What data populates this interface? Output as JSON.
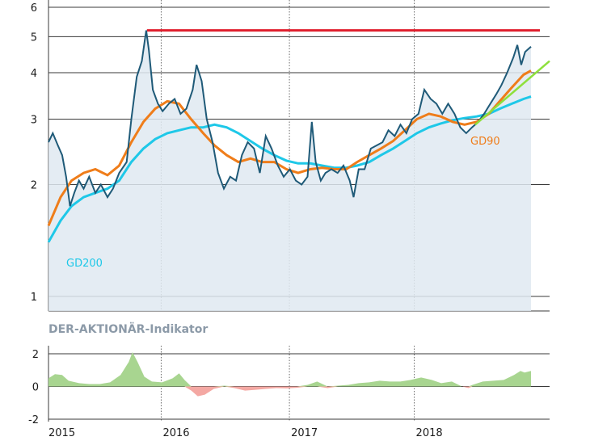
{
  "chart_data": [
    {
      "type": "line",
      "title": "",
      "xlabel": "",
      "ylabel": "",
      "scale": "log",
      "ylim": [
        1,
        6
      ],
      "yticks": [
        1,
        2,
        3,
        4,
        5,
        6
      ],
      "x_years": [
        "2015",
        "2016",
        "2017",
        "2018"
      ],
      "grid": true,
      "annotations": [
        {
          "label": "GD200",
          "color": "#1ec8e8"
        },
        {
          "label": "GD90",
          "color": "#ef7d1a"
        }
      ],
      "resistance_level": 5.2,
      "resistance_color": "#e0202e",
      "trendline": {
        "from": [
          "2018-07",
          2.9
        ],
        "to": [
          "2018-12",
          4.3
        ],
        "color": "#8ee03c"
      },
      "series": [
        {
          "role": "price",
          "color": "#1f5a78",
          "points": [
            [
              "2015-01-01",
              2.6
            ],
            [
              "2015-01-12",
              2.75
            ],
            [
              "2015-01-25",
              2.55
            ],
            [
              "2015-02-05",
              2.4
            ],
            [
              "2015-02-15",
              2.1
            ],
            [
              "2015-02-25",
              1.75
            ],
            [
              "2015-03-08",
              1.9
            ],
            [
              "2015-03-20",
              2.05
            ],
            [
              "2015-04-01",
              1.95
            ],
            [
              "2015-04-15",
              2.1
            ],
            [
              "2015-05-01",
              1.9
            ],
            [
              "2015-05-15",
              2.0
            ],
            [
              "2015-06-01",
              1.85
            ],
            [
              "2015-06-15",
              1.95
            ],
            [
              "2015-07-01",
              2.15
            ],
            [
              "2015-07-20",
              2.3
            ],
            [
              "2015-08-01",
              3.0
            ],
            [
              "2015-08-15",
              3.9
            ],
            [
              "2015-08-28",
              4.3
            ],
            [
              "2015-09-08",
              5.2
            ],
            [
              "2015-09-15",
              4.6
            ],
            [
              "2015-09-25",
              3.6
            ],
            [
              "2015-10-08",
              3.3
            ],
            [
              "2015-10-20",
              3.15
            ],
            [
              "2015-11-05",
              3.3
            ],
            [
              "2015-11-20",
              3.4
            ],
            [
              "2015-12-05",
              3.1
            ],
            [
              "2015-12-20",
              3.2
            ],
            [
              "2016-01-05",
              3.6
            ],
            [
              "2016-01-15",
              4.2
            ],
            [
              "2016-01-28",
              3.8
            ],
            [
              "2016-02-10",
              3.0
            ],
            [
              "2016-02-25",
              2.6
            ],
            [
              "2016-03-10",
              2.15
            ],
            [
              "2016-03-25",
              1.95
            ],
            [
              "2016-04-10",
              2.1
            ],
            [
              "2016-04-25",
              2.05
            ],
            [
              "2016-05-10",
              2.4
            ],
            [
              "2016-05-25",
              2.6
            ],
            [
              "2016-06-10",
              2.5
            ],
            [
              "2016-06-25",
              2.15
            ],
            [
              "2016-07-10",
              2.7
            ],
            [
              "2016-07-25",
              2.5
            ],
            [
              "2016-08-10",
              2.25
            ],
            [
              "2016-08-25",
              2.1
            ],
            [
              "2016-09-10",
              2.2
            ],
            [
              "2016-09-25",
              2.05
            ],
            [
              "2016-10-10",
              2.0
            ],
            [
              "2016-10-25",
              2.1
            ],
            [
              "2016-11-05",
              2.95
            ],
            [
              "2016-11-15",
              2.3
            ],
            [
              "2016-11-28",
              2.05
            ],
            [
              "2016-12-10",
              2.15
            ],
            [
              "2016-12-25",
              2.2
            ],
            [
              "2017-01-10",
              2.15
            ],
            [
              "2017-01-25",
              2.25
            ],
            [
              "2017-02-10",
              2.05
            ],
            [
              "2017-02-20",
              1.85
            ],
            [
              "2017-03-05",
              2.2
            ],
            [
              "2017-03-20",
              2.2
            ],
            [
              "2017-04-05",
              2.5
            ],
            [
              "2017-04-20",
              2.55
            ],
            [
              "2017-05-05",
              2.6
            ],
            [
              "2017-05-20",
              2.8
            ],
            [
              "2017-06-05",
              2.7
            ],
            [
              "2017-06-20",
              2.9
            ],
            [
              "2017-07-05",
              2.75
            ],
            [
              "2017-07-20",
              3.0
            ],
            [
              "2017-08-05",
              3.1
            ],
            [
              "2017-08-20",
              3.6
            ],
            [
              "2017-09-05",
              3.4
            ],
            [
              "2017-09-20",
              3.3
            ],
            [
              "2017-10-05",
              3.1
            ],
            [
              "2017-10-20",
              3.3
            ],
            [
              "2017-11-05",
              3.1
            ],
            [
              "2017-11-20",
              2.85
            ],
            [
              "2017-12-05",
              2.75
            ],
            [
              "2017-12-20",
              2.85
            ],
            [
              "2018-01-05",
              2.95
            ],
            [
              "2018-01-20",
              3.1
            ],
            [
              "2018-02-05",
              3.3
            ],
            [
              "2018-02-20",
              3.5
            ],
            [
              "2018-03-05",
              3.7
            ],
            [
              "2018-03-20",
              4.0
            ],
            [
              "2018-04-05",
              4.4
            ],
            [
              "2018-04-15",
              4.75
            ],
            [
              "2018-04-25",
              4.2
            ],
            [
              "2018-05-05",
              4.55
            ],
            [
              "2018-05-20",
              4.7
            ]
          ]
        },
        {
          "role": "gd90",
          "name": "GD90",
          "color": "#ef7d1a",
          "points": [
            [
              "2015-01-01",
              1.55
            ],
            [
              "2015-02-01",
              1.85
            ],
            [
              "2015-03-01",
              2.05
            ],
            [
              "2015-04-01",
              2.15
            ],
            [
              "2015-05-01",
              2.2
            ],
            [
              "2015-06-01",
              2.12
            ],
            [
              "2015-07-01",
              2.25
            ],
            [
              "2015-08-01",
              2.6
            ],
            [
              "2015-09-01",
              2.95
            ],
            [
              "2015-10-01",
              3.2
            ],
            [
              "2015-11-01",
              3.35
            ],
            [
              "2015-12-01",
              3.3
            ],
            [
              "2016-01-01",
              3.0
            ],
            [
              "2016-02-01",
              2.75
            ],
            [
              "2016-03-01",
              2.55
            ],
            [
              "2016-04-01",
              2.4
            ],
            [
              "2016-05-01",
              2.3
            ],
            [
              "2016-06-01",
              2.35
            ],
            [
              "2016-07-01",
              2.3
            ],
            [
              "2016-08-01",
              2.3
            ],
            [
              "2016-09-01",
              2.2
            ],
            [
              "2016-10-01",
              2.15
            ],
            [
              "2016-11-01",
              2.2
            ],
            [
              "2016-12-01",
              2.22
            ],
            [
              "2017-01-01",
              2.2
            ],
            [
              "2017-02-01",
              2.2
            ],
            [
              "2017-03-01",
              2.3
            ],
            [
              "2017-04-01",
              2.4
            ],
            [
              "2017-05-01",
              2.5
            ],
            [
              "2017-06-01",
              2.62
            ],
            [
              "2017-07-01",
              2.8
            ],
            [
              "2017-08-01",
              3.0
            ],
            [
              "2017-09-01",
              3.1
            ],
            [
              "2017-10-01",
              3.05
            ],
            [
              "2017-11-01",
              2.95
            ],
            [
              "2017-12-01",
              2.9
            ],
            [
              "2018-01-01",
              2.95
            ],
            [
              "2018-02-01",
              3.1
            ],
            [
              "2018-03-01",
              3.35
            ],
            [
              "2018-04-01",
              3.65
            ],
            [
              "2018-05-01",
              3.95
            ],
            [
              "2018-05-20",
              4.05
            ]
          ]
        },
        {
          "role": "gd200",
          "name": "GD200",
          "color": "#1ec8e8",
          "points": [
            [
              "2015-01-01",
              1.4
            ],
            [
              "2015-02-01",
              1.6
            ],
            [
              "2015-03-01",
              1.75
            ],
            [
              "2015-04-01",
              1.85
            ],
            [
              "2015-05-01",
              1.9
            ],
            [
              "2015-06-01",
              1.95
            ],
            [
              "2015-07-01",
              2.05
            ],
            [
              "2015-08-01",
              2.3
            ],
            [
              "2015-09-01",
              2.5
            ],
            [
              "2015-10-01",
              2.65
            ],
            [
              "2015-11-01",
              2.75
            ],
            [
              "2015-12-01",
              2.8
            ],
            [
              "2016-01-01",
              2.85
            ],
            [
              "2016-02-01",
              2.85
            ],
            [
              "2016-03-01",
              2.9
            ],
            [
              "2016-04-01",
              2.85
            ],
            [
              "2016-05-01",
              2.75
            ],
            [
              "2016-06-01",
              2.62
            ],
            [
              "2016-07-01",
              2.5
            ],
            [
              "2016-08-01",
              2.4
            ],
            [
              "2016-09-01",
              2.32
            ],
            [
              "2016-10-01",
              2.28
            ],
            [
              "2016-11-01",
              2.28
            ],
            [
              "2016-12-01",
              2.25
            ],
            [
              "2017-01-01",
              2.22
            ],
            [
              "2017-02-01",
              2.22
            ],
            [
              "2017-03-01",
              2.25
            ],
            [
              "2017-04-01",
              2.3
            ],
            [
              "2017-05-01",
              2.4
            ],
            [
              "2017-06-01",
              2.5
            ],
            [
              "2017-07-01",
              2.62
            ],
            [
              "2017-08-01",
              2.75
            ],
            [
              "2017-09-01",
              2.85
            ],
            [
              "2017-10-01",
              2.92
            ],
            [
              "2017-11-01",
              2.98
            ],
            [
              "2017-12-01",
              3.02
            ],
            [
              "2018-01-01",
              3.05
            ],
            [
              "2018-02-01",
              3.1
            ],
            [
              "2018-03-01",
              3.2
            ],
            [
              "2018-04-01",
              3.3
            ],
            [
              "2018-05-01",
              3.4
            ],
            [
              "2018-05-20",
              3.45
            ]
          ]
        }
      ]
    },
    {
      "type": "area",
      "title": "DER-AKTIONÄR-Indikator",
      "ylim": [
        -2,
        2
      ],
      "yticks": [
        -2,
        0,
        2
      ],
      "x_years": [
        "2015",
        "2016",
        "2017",
        "2018"
      ],
      "positive_color": "#a8d590",
      "negative_color": "#f4a8a3",
      "points": [
        [
          "2015-01-01",
          0.5
        ],
        [
          "2015-01-20",
          0.75
        ],
        [
          "2015-02-10",
          0.7
        ],
        [
          "2015-03-01",
          0.35
        ],
        [
          "2015-04-01",
          0.2
        ],
        [
          "2015-05-01",
          0.15
        ],
        [
          "2015-06-01",
          0.15
        ],
        [
          "2015-07-01",
          0.25
        ],
        [
          "2015-08-01",
          0.7
        ],
        [
          "2015-08-25",
          1.5
        ],
        [
          "2015-09-05",
          2.1
        ],
        [
          "2015-09-20",
          1.5
        ],
        [
          "2015-10-10",
          0.6
        ],
        [
          "2015-11-01",
          0.3
        ],
        [
          "2015-12-01",
          0.25
        ],
        [
          "2016-01-01",
          0.5
        ],
        [
          "2016-01-20",
          0.8
        ],
        [
          "2016-02-05",
          0.4
        ],
        [
          "2016-02-25",
          -0.25
        ],
        [
          "2016-03-15",
          -0.6
        ],
        [
          "2016-04-05",
          -0.5
        ],
        [
          "2016-05-01",
          -0.15
        ],
        [
          "2016-06-01",
          0.05
        ],
        [
          "2016-07-01",
          -0.1
        ],
        [
          "2016-08-01",
          -0.25
        ],
        [
          "2016-09-01",
          -0.2
        ],
        [
          "2016-10-01",
          -0.15
        ],
        [
          "2016-11-01",
          -0.1
        ],
        [
          "2016-12-01",
          -0.12
        ],
        [
          "2017-01-01",
          -0.08
        ],
        [
          "2017-02-01",
          0.1
        ],
        [
          "2017-03-01",
          0.3
        ],
        [
          "2017-04-01",
          -0.1
        ],
        [
          "2017-05-01",
          0.05
        ],
        [
          "2017-06-01",
          0.1
        ],
        [
          "2017-07-01",
          0.2
        ],
        [
          "2017-08-01",
          0.25
        ],
        [
          "2017-09-01",
          0.35
        ],
        [
          "2017-10-01",
          0.3
        ],
        [
          "2017-11-01",
          0.3
        ],
        [
          "2017-12-01",
          0.4
        ],
        [
          "2018-01-01",
          0.55
        ],
        [
          "2018-02-01",
          0.4
        ],
        [
          "2018-03-01",
          0.2
        ],
        [
          "2018-04-01",
          0.3
        ],
        [
          "2018-05-01",
          0.0
        ],
        [
          "2018-05-20",
          -0.1
        ],
        [
          "2018-06-01",
          0.1
        ],
        [
          "2018-07-01",
          0.3
        ],
        [
          "2018-08-01",
          0.35
        ],
        [
          "2018-09-01",
          0.4
        ],
        [
          "2018-10-01",
          0.7
        ],
        [
          "2018-10-20",
          0.95
        ],
        [
          "2018-11-01",
          0.85
        ],
        [
          "2018-11-20",
          0.95
        ]
      ]
    }
  ]
}
